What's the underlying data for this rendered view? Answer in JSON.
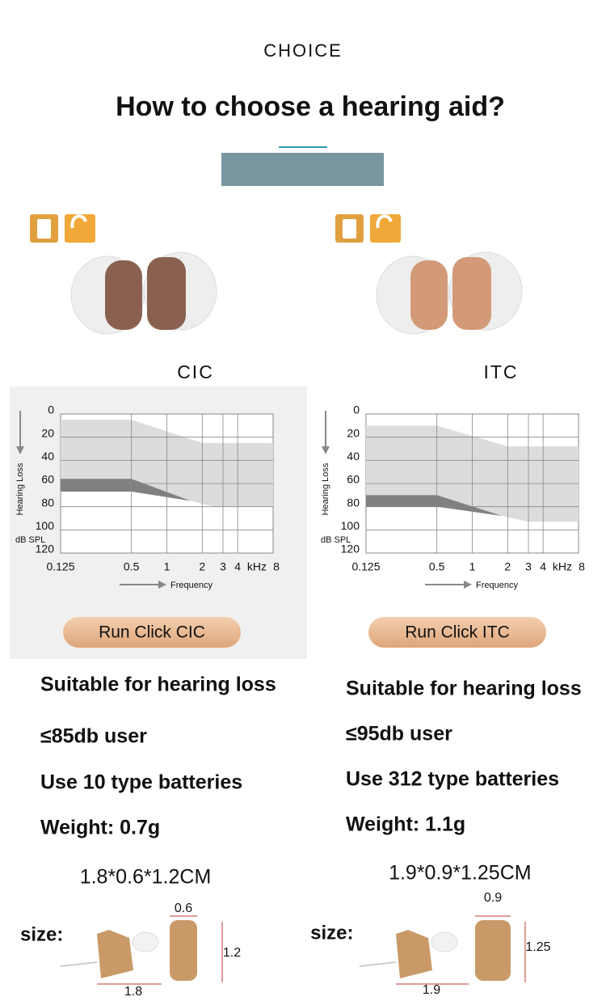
{
  "header": {
    "kicker": "CHOICE",
    "title": "How to choose a hearing aid?"
  },
  "products": [
    {
      "name": "CIC",
      "audiogram": {
        "type": "area",
        "y_label": "Hearing Loss",
        "y_unit": "dB SPL",
        "x_label": "Frequency",
        "x_unit": "kHz",
        "log_x": true,
        "xlim": [
          0.125,
          8
        ],
        "xticks": [
          0.125,
          0.5,
          1,
          2,
          3,
          4,
          8
        ],
        "ylim": [
          0,
          120
        ],
        "yticks": [
          0,
          20,
          40,
          60,
          80,
          100,
          120
        ],
        "grid": true,
        "bands": [
          {
            "color": "#dcdcdc",
            "x": [
              0.125,
              0.5,
              2,
              8,
              8,
              2.5,
              1.6,
              0.5,
              0.125
            ],
            "y": [
              5,
              5,
              25,
              25,
              80,
              80,
              75,
              57,
              57
            ]
          },
          {
            "color": "#808080",
            "x": [
              0.125,
              0.5,
              1.6,
              0.5,
              0.125
            ],
            "y": [
              56,
              56,
              75,
              67,
              67
            ]
          }
        ]
      },
      "button": "Run Click CIC",
      "features": [
        "Suitable for hearing loss",
        "≤85db user",
        "Use 10 type batteries",
        "Weight: 0.7g"
      ],
      "dimensions": "1.8*0.6*1.2CM",
      "size_label": "size:",
      "measures": {
        "width": "0.6",
        "height": "1.2",
        "length": "1.8"
      }
    },
    {
      "name": "ITC",
      "audiogram": {
        "type": "area",
        "y_label": "Hearing Loss",
        "y_unit": "dB SPL",
        "x_label": "Frequency",
        "x_unit": "kHz",
        "log_x": true,
        "xlim": [
          0.125,
          8
        ],
        "xticks": [
          0.125,
          0.5,
          1,
          2,
          3,
          4,
          8
        ],
        "ylim": [
          0,
          120
        ],
        "yticks": [
          0,
          20,
          40,
          60,
          80,
          100,
          120
        ],
        "grid": true,
        "bands": [
          {
            "color": "#dcdcdc",
            "x": [
              0.125,
              0.5,
              2,
              8,
              8,
              3,
              1.8,
              0.5,
              0.125
            ],
            "y": [
              10,
              10,
              28,
              28,
              93,
              93,
              88,
              71,
              71
            ]
          },
          {
            "color": "#808080",
            "x": [
              0.125,
              0.5,
              1.8,
              0.5,
              0.125
            ],
            "y": [
              70,
              70,
              88,
              80,
              80
            ]
          }
        ]
      },
      "button": "Run Click ITC",
      "features": [
        "Suitable for hearing loss",
        "≤95db user",
        "Use 312 type batteries",
        "Weight: 1.1g"
      ],
      "dimensions": "1.9*0.9*1.25CM",
      "size_label": "size:",
      "measures": {
        "width": "0.9",
        "height": "1.25",
        "length": "1.9"
      }
    }
  ]
}
